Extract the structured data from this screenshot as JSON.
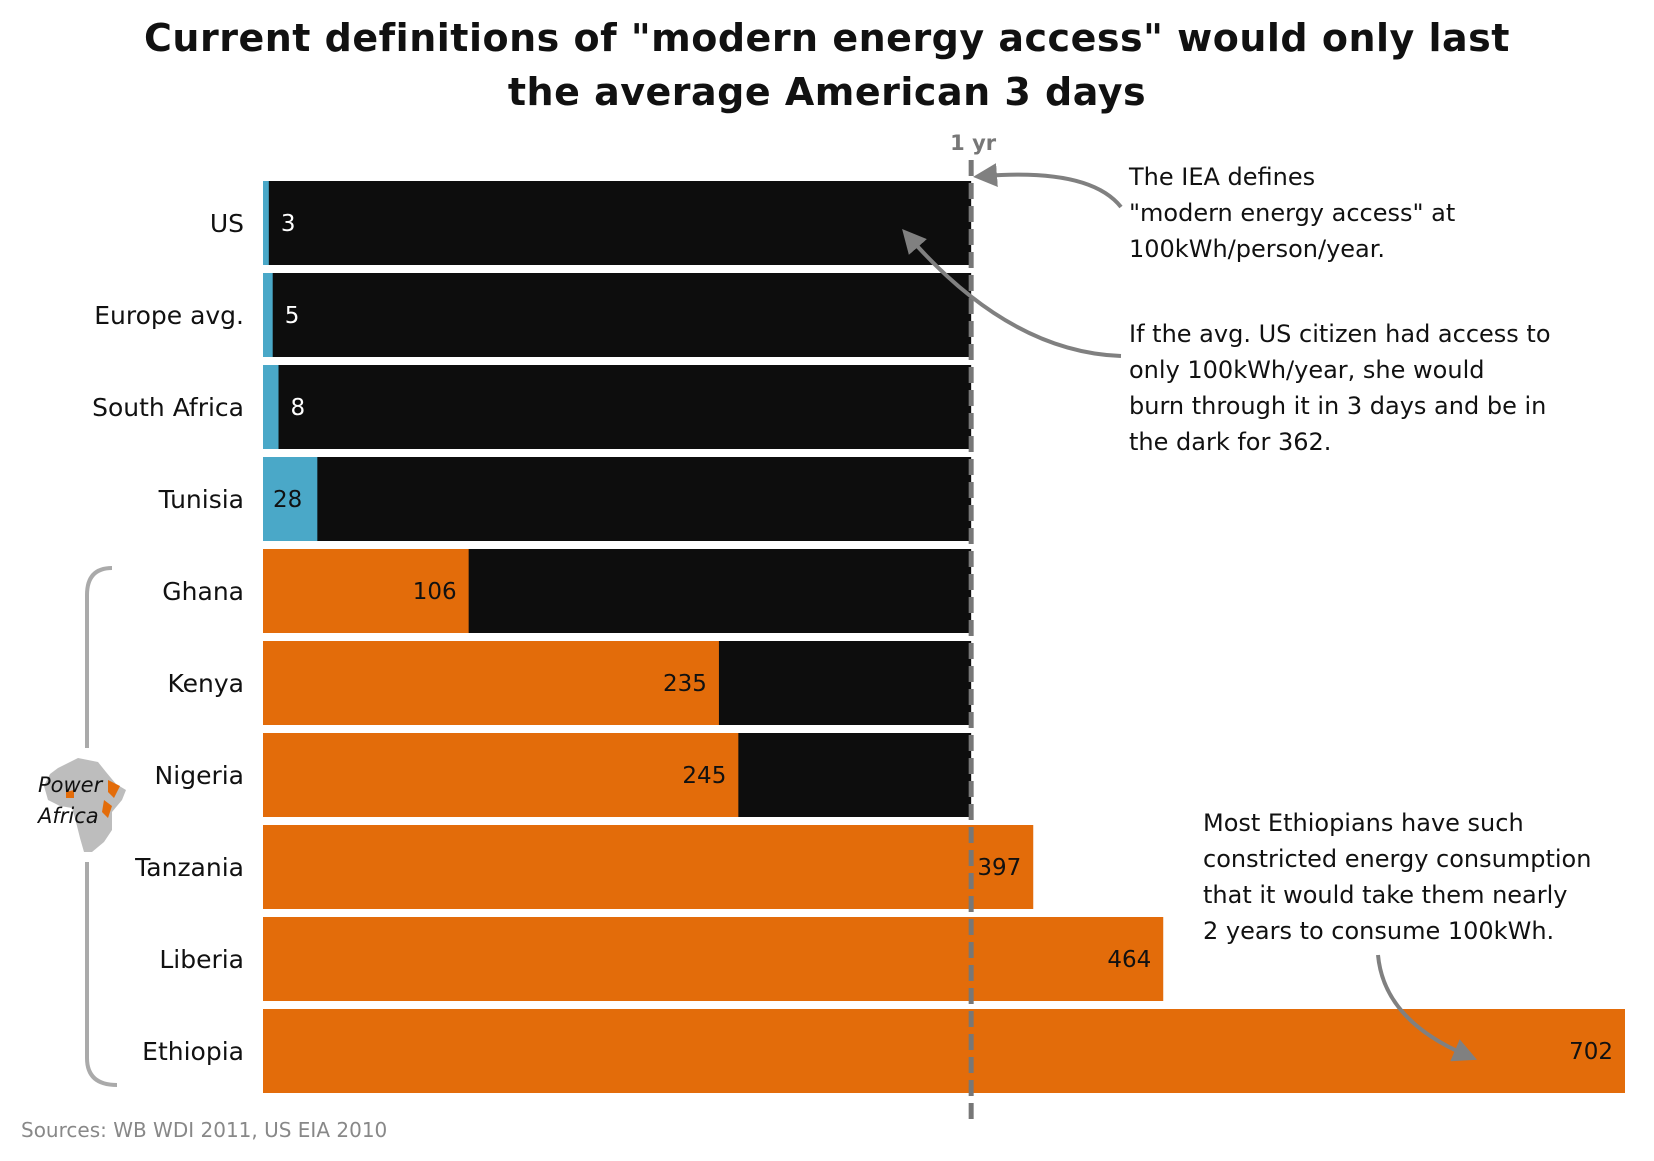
{
  "title_lines": [
    "Current definitions of \"modern energy access\" would only last",
    "the average American 3 days"
  ],
  "reference_label": "1 yr",
  "annotations": {
    "iea": [
      "The IEA defines",
      "\"modern energy access\" at",
      "100kWh/person/year."
    ],
    "us": [
      "If the avg. US citizen had access to",
      "only 100kWh/year, she would",
      "burn through it in 3 days and be in",
      "the dark for 362."
    ],
    "ethiopia": [
      "Most Ethiopians have such",
      "constricted energy consumption",
      "that it would take them nearly",
      "2 years to consume 100kWh."
    ]
  },
  "group_label": [
    "Power",
    "Africa"
  ],
  "sources": "Sources: WB WDI 2011, US EIA 2010",
  "colors": {
    "non_africa": "#4aa8c8",
    "africa": "#e36c0a",
    "remainder": "#0d0d0d",
    "reference": "#777777"
  },
  "chart_data": {
    "type": "bar",
    "orientation": "horizontal",
    "unit": "days to consume 100kWh",
    "categories": [
      "US",
      "Europe avg.",
      "South Africa",
      "Tunisia",
      "Ghana",
      "Kenya",
      "Nigeria",
      "Tanzania",
      "Liberia",
      "Ethiopia"
    ],
    "values": [
      3,
      5,
      8,
      28,
      106,
      235,
      245,
      397,
      464,
      702
    ],
    "group": [
      "other",
      "other",
      "other",
      "other",
      "Power Africa",
      "Power Africa",
      "Power Africa",
      "Power Africa",
      "Power Africa",
      "Power Africa"
    ],
    "reference_line": 365,
    "xlim": [
      0,
      702
    ]
  }
}
